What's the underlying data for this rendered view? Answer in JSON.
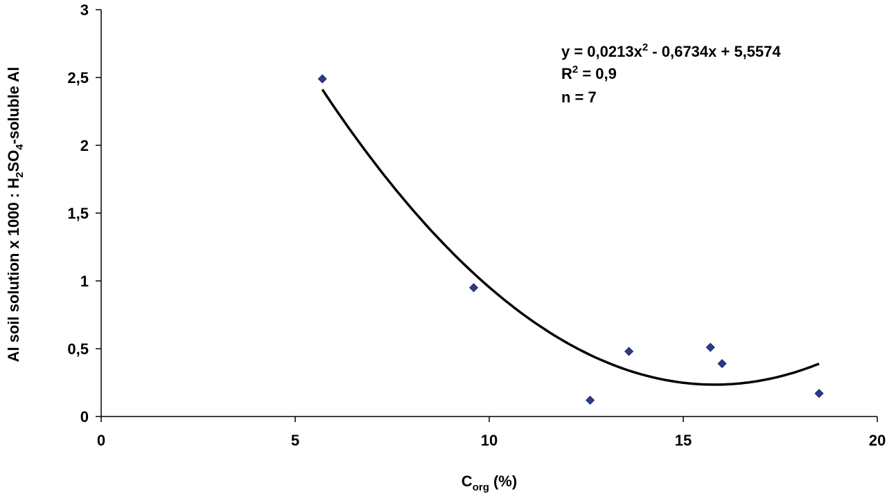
{
  "chart_data": {
    "type": "scatter",
    "title": "",
    "xlabel": {
      "main": "C",
      "sub": "org",
      "rest": " (%)"
    },
    "ylabel": {
      "part1": "Al soil solution x 1000 : H",
      "sub1": "2",
      "part2": "SO",
      "sub2": "4",
      "part3": "-soluble Al"
    },
    "xlim": [
      0,
      20
    ],
    "ylim": [
      0,
      3
    ],
    "xticks": [
      0,
      5,
      10,
      15,
      20
    ],
    "xtick_labels": [
      "0",
      "5",
      "10",
      "15",
      "20"
    ],
    "yticks": [
      0,
      0.5,
      1,
      1.5,
      2,
      2.5,
      3
    ],
    "ytick_labels": [
      "0",
      "0,5",
      "1",
      "1,5",
      "2",
      "2,5",
      "3"
    ],
    "grid": false,
    "legend": "none",
    "points": [
      {
        "x": 5.7,
        "y": 2.49
      },
      {
        "x": 9.6,
        "y": 0.95
      },
      {
        "x": 12.6,
        "y": 0.12
      },
      {
        "x": 13.6,
        "y": 0.48
      },
      {
        "x": 15.7,
        "y": 0.51
      },
      {
        "x": 16.0,
        "y": 0.39
      },
      {
        "x": 18.5,
        "y": 0.17
      }
    ],
    "marker_color": "#2b3990",
    "trendline": {
      "type": "polynomial",
      "order": 2,
      "coefficients": {
        "a": 0.0213,
        "b": -0.6734,
        "c": 5.5574
      },
      "x_range": [
        5.7,
        18.5
      ],
      "color": "#000000"
    },
    "annotations": {
      "equation_pre": "y = 0,0213x",
      "equation_sup": "2",
      "equation_post": " - 0,6734x + 5,5574",
      "r2_pre": "R",
      "r2_sup": "2",
      "r2_post": " = 0,9",
      "n_text": "n = 7"
    }
  }
}
